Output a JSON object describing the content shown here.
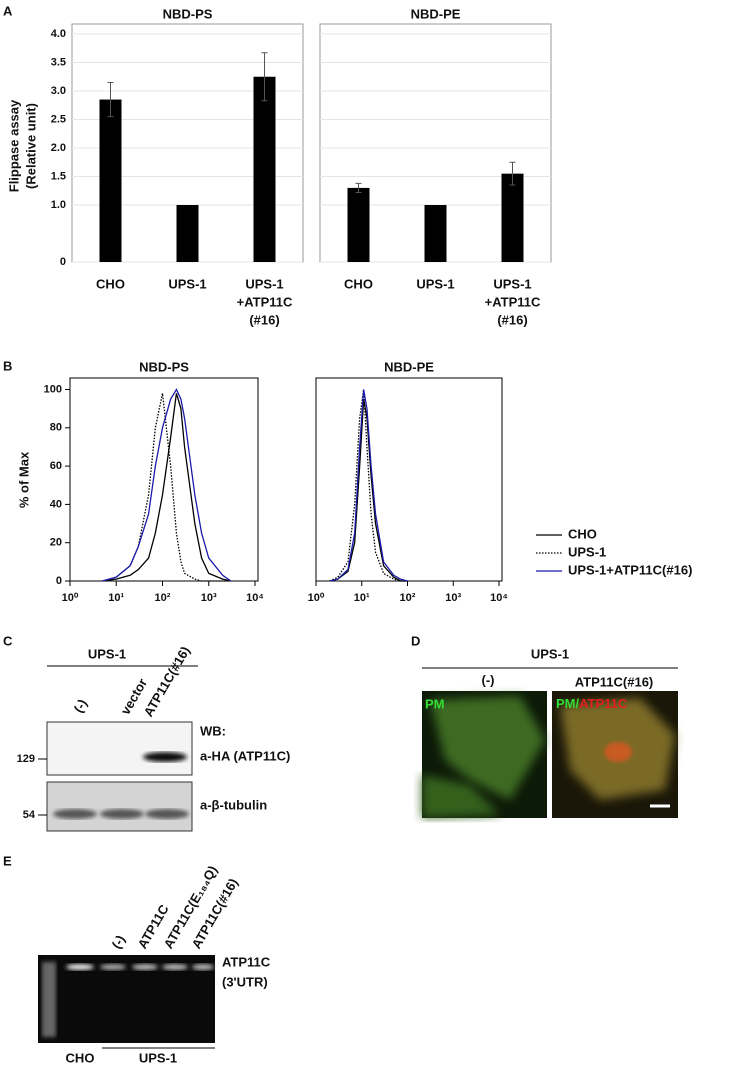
{
  "chart_data": [
    {
      "type": "bar",
      "title": "NBD-PS",
      "ylabel": [
        "Flippase assay",
        "(Relative unit)"
      ],
      "categories": [
        [
          "CHO"
        ],
        [
          "UPS-1"
        ],
        [
          "UPS-1",
          "+ATP11C",
          "(#16)"
        ]
      ],
      "values": [
        2.85,
        1.0,
        3.25
      ],
      "errors": [
        0.3,
        0,
        0.42
      ],
      "color": "#000000",
      "ylim": [
        0,
        4
      ],
      "yticks": [
        0,
        {
          "value": 1,
          "label": "1.0"
        },
        1.5,
        {
          "value": 2,
          "label": "2.0"
        },
        2.5,
        {
          "value": 3,
          "label": "3.0"
        },
        3.5,
        {
          "value": 4,
          "label": "4.0"
        }
      ],
      "grid": true
    },
    {
      "type": "bar",
      "title": "NBD-PE",
      "categories": [
        [
          "CHO"
        ],
        [
          "UPS-1"
        ],
        [
          "UPS-1",
          "+ATP11C",
          "(#16)"
        ]
      ],
      "values": [
        1.3,
        1.0,
        1.55
      ],
      "errors": [
        0.08,
        0,
        0.2
      ],
      "color": "#000000",
      "ylim": [
        0,
        4
      ]
    },
    {
      "type": "line",
      "title": "NBD-PS",
      "ylabel": "% of Max",
      "log_x": true,
      "x": [
        5,
        10,
        20,
        30,
        50,
        70,
        100,
        150,
        200,
        250,
        300,
        500,
        700,
        1000,
        2000,
        3000
      ],
      "series": [
        {
          "name": "CHO",
          "color": "#000000",
          "style": "solid",
          "values": [
            0,
            1,
            3,
            6,
            12,
            25,
            45,
            75,
            98,
            90,
            70,
            30,
            12,
            4,
            1,
            0
          ]
        },
        {
          "name": "UPS-1",
          "color": "#000000",
          "style": "dotted",
          "values": [
            0,
            2,
            8,
            18,
            45,
            80,
            98,
            60,
            25,
            10,
            4,
            1,
            0,
            0,
            0,
            0
          ]
        },
        {
          "name": "UPS-1+ATP11C(#16)",
          "color": "#1a1aa8",
          "style": "solid",
          "values": [
            0,
            2,
            8,
            18,
            35,
            60,
            80,
            95,
            100,
            95,
            85,
            45,
            25,
            12,
            3,
            0
          ]
        }
      ],
      "xlim": [
        1,
        10000
      ],
      "xticks": [
        {
          "value": 1,
          "label": "10⁰"
        },
        {
          "value": 10,
          "label": "10¹"
        },
        {
          "value": 100,
          "label": "10²"
        },
        {
          "value": 1000,
          "label": "10³"
        },
        {
          "value": 10000,
          "label": "10⁴"
        }
      ],
      "ylim": [
        0,
        106
      ],
      "yticks": [
        0,
        20,
        40,
        60,
        80,
        100
      ]
    },
    {
      "type": "line",
      "title": "NBD-PE",
      "log_x": true,
      "x": [
        2,
        3,
        5,
        7,
        9,
        11,
        13,
        16,
        20,
        30,
        50,
        70,
        100
      ],
      "series": [
        {
          "color": "#000000",
          "style": "solid",
          "values": [
            0,
            1,
            5,
            20,
            60,
            95,
            85,
            55,
            30,
            8,
            2,
            0,
            0
          ]
        },
        {
          "color": "#000000",
          "style": "dotted",
          "values": [
            0,
            2,
            10,
            40,
            85,
            100,
            70,
            35,
            15,
            4,
            1,
            0,
            0
          ]
        },
        {
          "color": "#1a1aa8",
          "style": "solid",
          "values": [
            0,
            1,
            6,
            25,
            70,
            100,
            90,
            60,
            35,
            10,
            3,
            1,
            0
          ]
        }
      ],
      "xlim": [
        1,
        10000
      ],
      "xticks": [
        {
          "value": 1,
          "label": "10⁰"
        },
        {
          "value": 10,
          "label": "10¹"
        },
        {
          "value": 100,
          "label": "10²"
        },
        {
          "value": 1000,
          "label": "10³"
        },
        {
          "value": 10000,
          "label": "10⁴"
        }
      ],
      "ylim": [
        0,
        106
      ]
    }
  ],
  "panel_letters": [
    "A",
    "B",
    "C",
    "D",
    "E"
  ],
  "panel_c": {
    "group": "UPS-1",
    "lanes": [
      "(-)",
      "vector",
      "ATP11C(#16)"
    ],
    "wb": "WB:",
    "blots": [
      "a-HA (ATP11C)",
      "a-β-tubulin"
    ],
    "markers": [
      129,
      54
    ]
  },
  "panel_d": {
    "group": "UPS-1",
    "conditions": [
      "(-)",
      "ATP11C(#16)"
    ],
    "stains": [
      "PM",
      "PM/",
      "ATP11C"
    ]
  },
  "panel_e": {
    "lanes": [
      "(-)",
      "ATP11C",
      "ATP11C(E₁₈₄Q)",
      "ATP11C(#16)"
    ],
    "band": [
      "ATP11C",
      "(3'UTR)"
    ],
    "groups": [
      "CHO",
      "UPS-1"
    ]
  }
}
